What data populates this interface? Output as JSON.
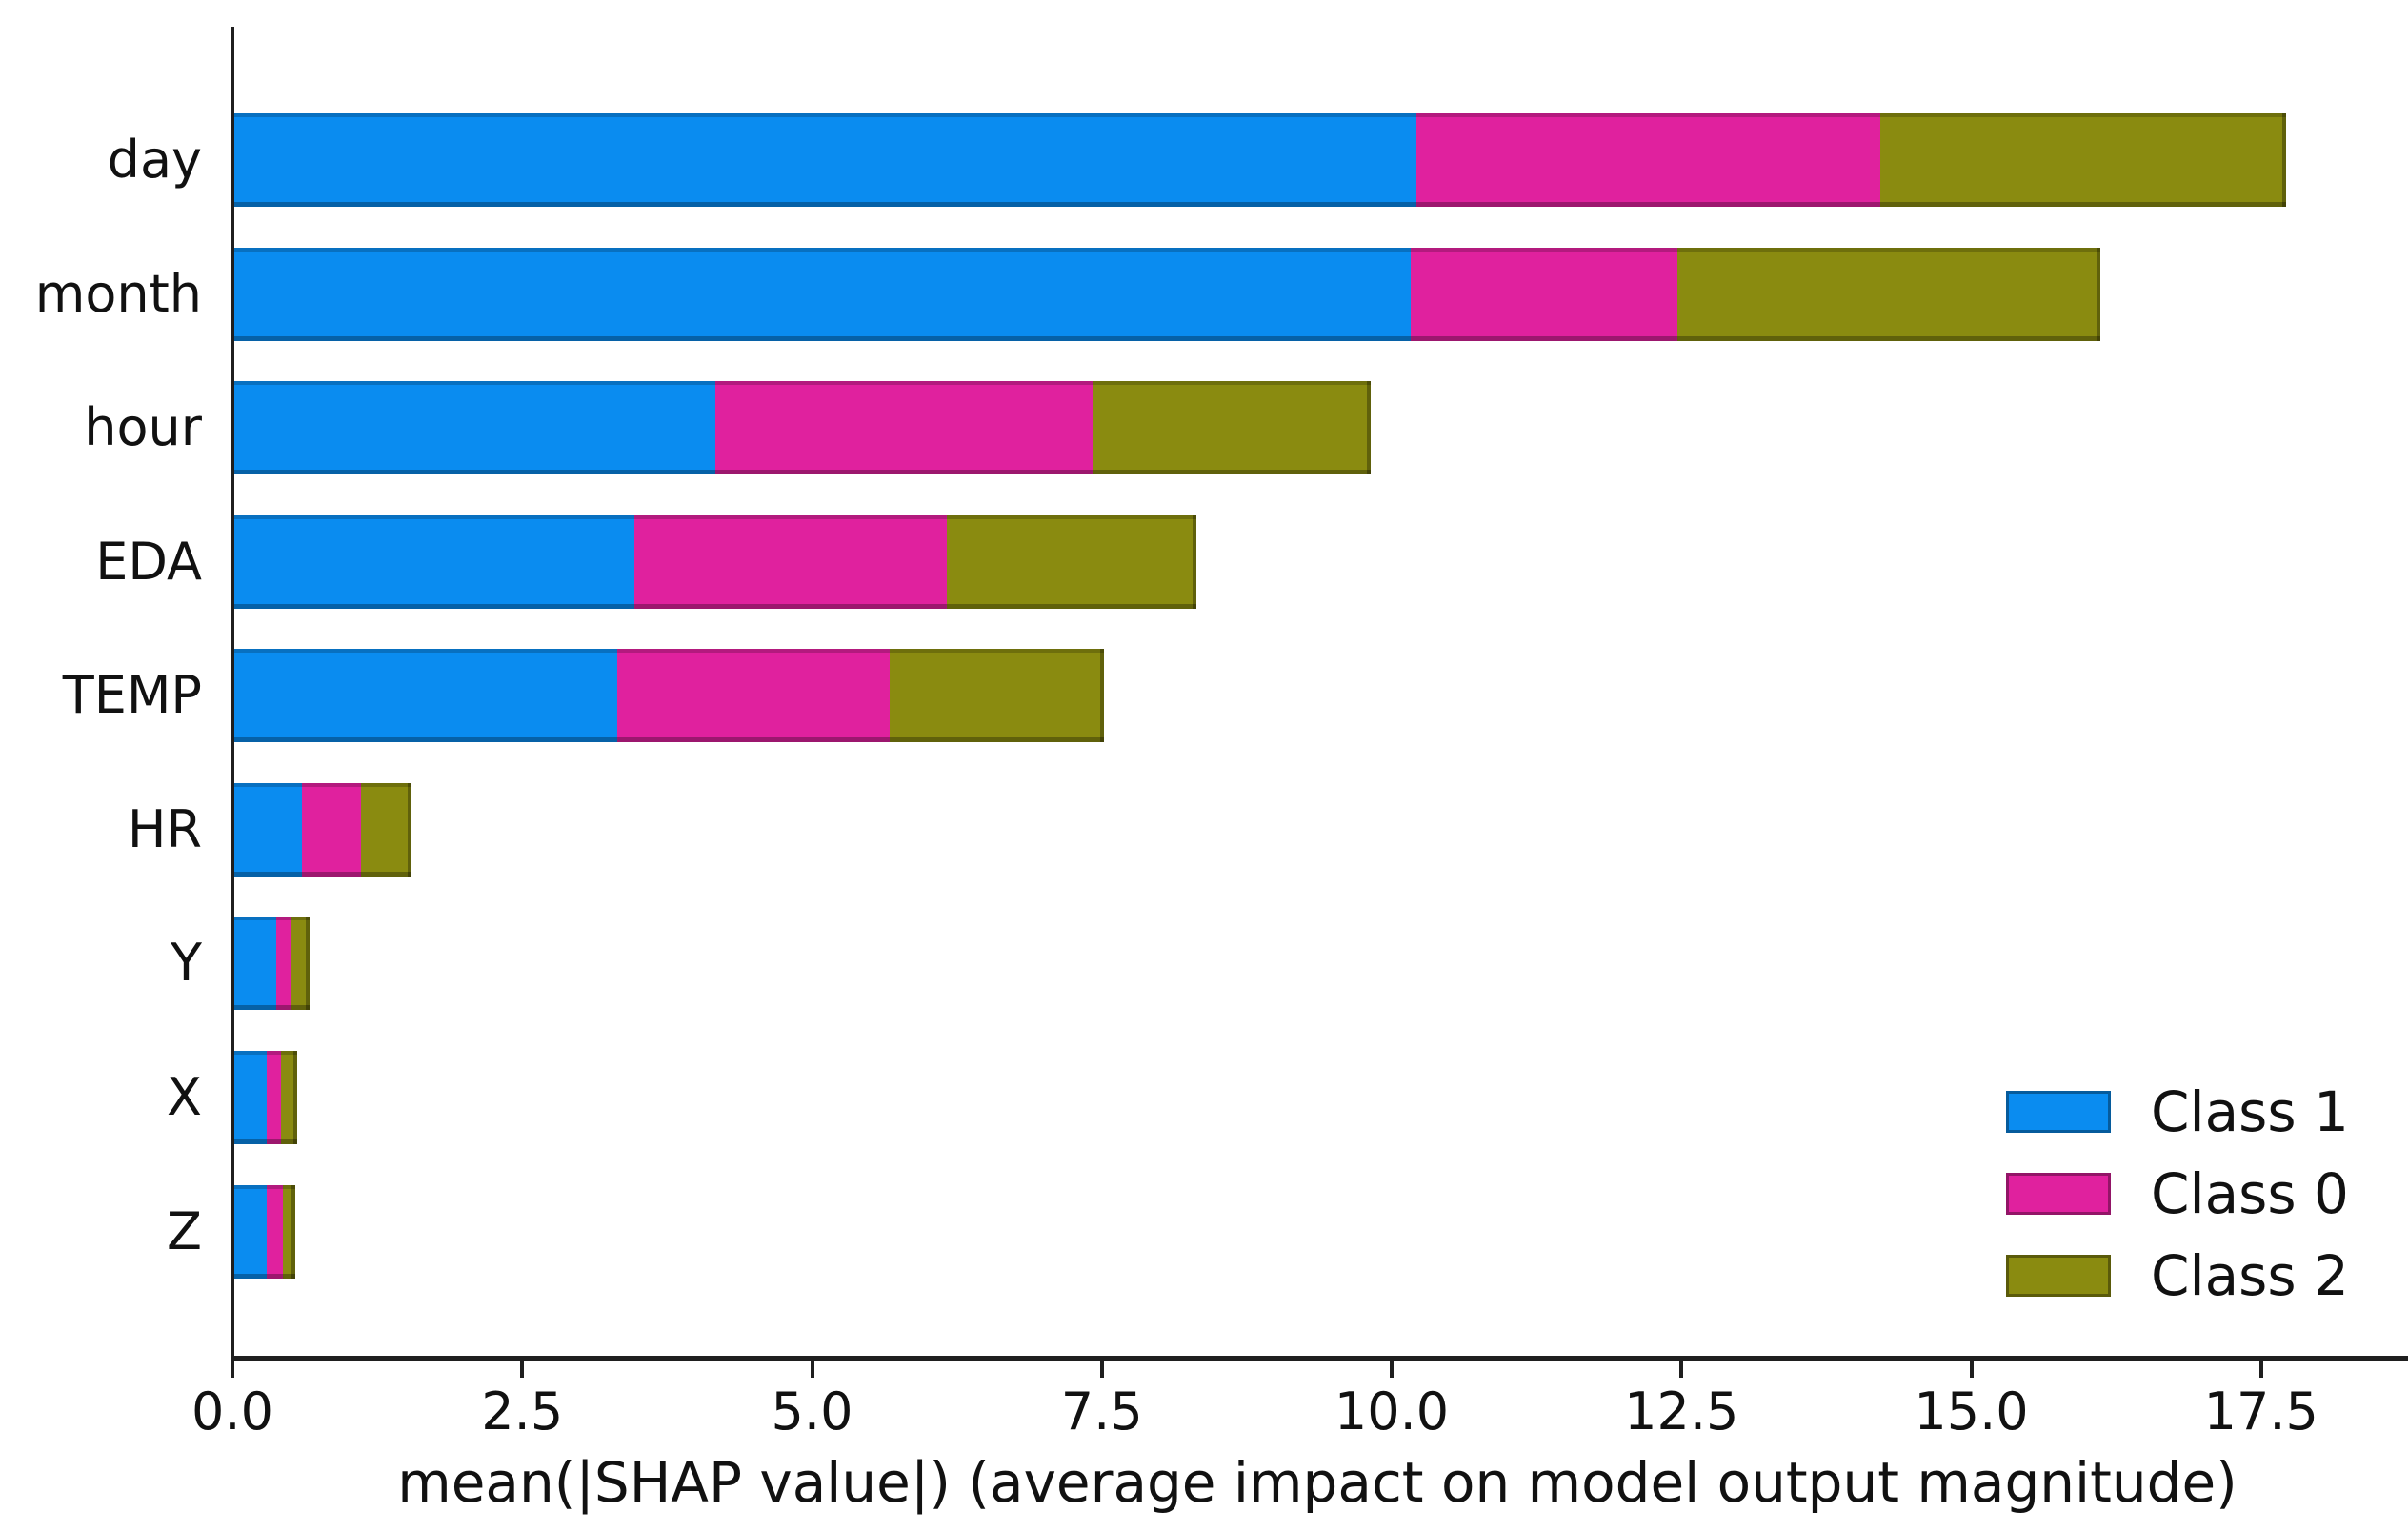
{
  "chart_data": {
    "type": "bar",
    "orientation": "horizontal",
    "stacked": true,
    "title": "",
    "xlabel": "mean(|SHAP value|) (average impact on model output magnitude)",
    "ylabel": "",
    "categories": [
      "day",
      "month",
      "hour",
      "EDA",
      "TEMP",
      "HR",
      "Y",
      "X",
      "Z"
    ],
    "series": [
      {
        "name": "Class 1",
        "color": "#0A8CF0",
        "values": [
          10.2,
          10.15,
          4.15,
          3.45,
          3.3,
          0.58,
          0.36,
          0.28,
          0.28
        ]
      },
      {
        "name": "Class 0",
        "color": "#E0219E",
        "values": [
          4.0,
          2.3,
          3.25,
          2.7,
          2.35,
          0.51,
          0.13,
          0.12,
          0.14
        ]
      },
      {
        "name": "Class 2",
        "color": "#8A8B10",
        "values": [
          3.5,
          3.65,
          2.4,
          2.15,
          1.85,
          0.44,
          0.16,
          0.14,
          0.11
        ]
      }
    ],
    "totals": [
      17.7,
      16.1,
      9.8,
      8.3,
      7.5,
      1.53,
      0.65,
      0.54,
      0.53
    ],
    "xlim": [
      0,
      18.7
    ],
    "xtick_values": [
      0,
      2.5,
      5,
      7.5,
      10,
      12.5,
      15,
      17.5
    ],
    "xtick_labels": [
      "0.0",
      "2.5",
      "5.0",
      "7.5",
      "10.0",
      "12.5",
      "15.0",
      "17.5"
    ],
    "grid": false,
    "legend": {
      "position": "lower right",
      "entries": [
        "Class 1",
        "Class 0",
        "Class 2"
      ]
    }
  },
  "colors": {
    "background": "#ffffff",
    "axis": "#1f1f1f",
    "text": "#111111",
    "class_1": "#0A8CF0",
    "class_0": "#E0219E",
    "class_2": "#8A8B10"
  }
}
